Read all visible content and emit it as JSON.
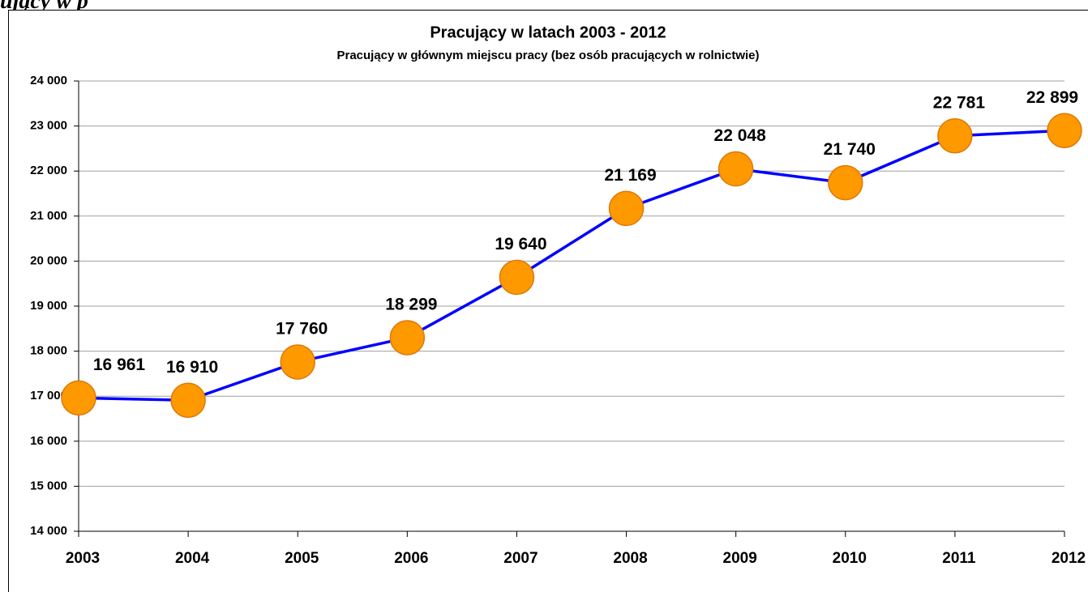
{
  "page_heading": "ujący w p",
  "chart_data": {
    "type": "line",
    "title": "Pracujący  w latach 2003 - 2012",
    "subtitle": "Pracujący w głównym miejscu pracy (bez osób pracujących w rolnictwie)",
    "categories": [
      "2003",
      "2004",
      "2005",
      "2006",
      "2007",
      "2008",
      "2009",
      "2010",
      "2011",
      "2012"
    ],
    "series": [
      {
        "name": "Pracujący",
        "color": "#0000ff",
        "marker_color": "#ff9900",
        "values": [
          16961,
          16910,
          17760,
          18299,
          19640,
          21169,
          22048,
          21740,
          22781,
          22899
        ],
        "value_labels": [
          "16 961",
          "16 910",
          "17 760",
          "18 299",
          "19 640",
          "21 169",
          "22 048",
          "21 740",
          "22 781",
          "22 899"
        ]
      }
    ],
    "ylim": [
      14000,
      24000
    ],
    "yticks": [
      {
        "value": 14000,
        "label": "14 000"
      },
      {
        "value": 15000,
        "label": "15 000"
      },
      {
        "value": 16000,
        "label": "16 000"
      },
      {
        "value": 17000,
        "label": "17 000"
      },
      {
        "value": 18000,
        "label": "18 000"
      },
      {
        "value": 19000,
        "label": "19 000"
      },
      {
        "value": 20000,
        "label": "20 000"
      },
      {
        "value": 21000,
        "label": "21 000"
      },
      {
        "value": 22000,
        "label": "22 000"
      },
      {
        "value": 23000,
        "label": "23 000"
      },
      {
        "value": 24000,
        "label": "24 000"
      }
    ],
    "grid": true
  }
}
